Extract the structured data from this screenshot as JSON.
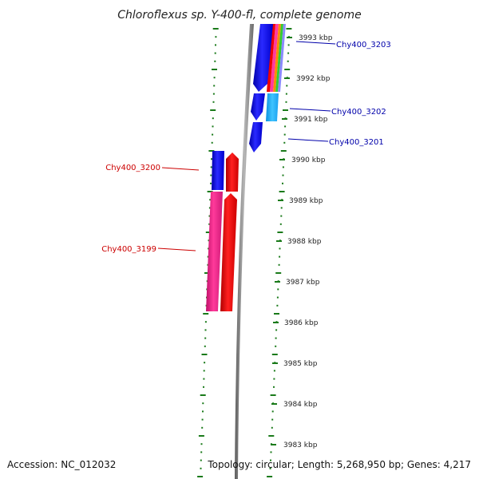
{
  "title": "Chloroflexus sp. Y-400-fl, complete genome",
  "footer": {
    "accession": "Accession: NC_012032",
    "summary": "Topology: circular; Length: 5,268,950 bp; Genes: 4,217"
  },
  "colors": {
    "backbone": "#808080",
    "ruler": "#1a7a1a",
    "forward_label": "#0000aa",
    "reverse_label": "#cc0000",
    "blue": "#0000ee",
    "cyan": "#1ab2ff",
    "red": "#ee0000",
    "magenta": "#ee2a8a"
  },
  "scale": {
    "unit": "kbp",
    "ticks_kbp": [
      3993,
      3992,
      3991,
      3990,
      3989,
      3988,
      3987,
      3986,
      3985,
      3984,
      3983
    ]
  },
  "tick_labels": [
    "3993 kbp",
    "3992 kbp",
    "3991 kbp",
    "3990 kbp",
    "3989 kbp",
    "3988 kbp",
    "3987 kbp",
    "3986 kbp",
    "3985 kbp",
    "3984 kbp",
    "3983 kbp"
  ],
  "gene_labels": {
    "g3203": "Chy400_3203",
    "g3202": "Chy400_3202",
    "g3201": "Chy400_3201",
    "g3200": "Chy400_3200",
    "g3199": "Chy400_3199"
  }
}
